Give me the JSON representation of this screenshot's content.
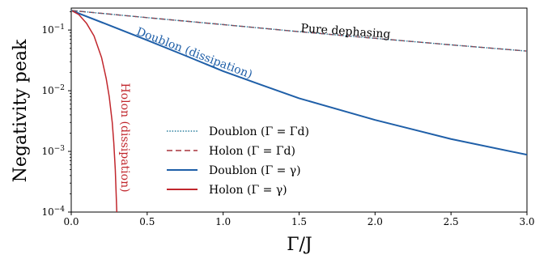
{
  "chart_data": {
    "type": "line",
    "xlabel": "Γ/J",
    "ylabel": "Negativity peak",
    "xlim": [
      0.0,
      3.0
    ],
    "ylim": [
      0.0001,
      0.23
    ],
    "yscale": "log",
    "x_ticks": [
      "0.0",
      "0.5",
      "1.0",
      "1.5",
      "2.0",
      "2.5",
      "3.0"
    ],
    "y_ticks": [
      {
        "base": "10",
        "exp": "−1"
      },
      {
        "base": "10",
        "exp": "−2"
      },
      {
        "base": "10",
        "exp": "−3"
      },
      {
        "base": "10",
        "exp": "−4"
      }
    ],
    "legend_position": "lower-center",
    "series": [
      {
        "name": "Doublon (Γ = Γd)",
        "color": "#2a7f9e",
        "style": "dotted",
        "x": [
          0.0,
          0.5,
          1.0,
          1.5,
          2.0,
          2.5,
          3.0
        ],
        "y": [
          0.21,
          0.16,
          0.123,
          0.094,
          0.073,
          0.057,
          0.045
        ]
      },
      {
        "name": "Holon (Γ = Γd)",
        "color": "#a8343c",
        "style": "dashed",
        "x": [
          0.0,
          0.5,
          1.0,
          1.5,
          2.0,
          2.5,
          3.0
        ],
        "y": [
          0.21,
          0.16,
          0.123,
          0.094,
          0.073,
          0.057,
          0.045
        ]
      },
      {
        "name": "Doublon (Γ = γ)",
        "color": "#1f5fa8",
        "style": "solid",
        "x": [
          0.0,
          0.25,
          0.5,
          0.75,
          1.0,
          1.25,
          1.5,
          2.0,
          2.5,
          3.0
        ],
        "y": [
          0.21,
          0.12,
          0.068,
          0.038,
          0.021,
          0.0125,
          0.0075,
          0.0033,
          0.0016,
          0.00088
        ]
      },
      {
        "name": "Holon (Γ = γ)",
        "color": "#c1272d",
        "style": "solid",
        "x": [
          0.0,
          0.05,
          0.1,
          0.15,
          0.2,
          0.23,
          0.25,
          0.27,
          0.28,
          0.29,
          0.3
        ],
        "y": [
          0.21,
          0.18,
          0.13,
          0.08,
          0.035,
          0.016,
          0.008,
          0.003,
          0.0014,
          0.0005,
          0.0001
        ]
      }
    ],
    "annotations": [
      {
        "text": "Pure dephasing",
        "color": "#000000"
      },
      {
        "text": "Doublon (dissipation)",
        "color": "#1f5fa8"
      },
      {
        "text": "Holon (dissipation)",
        "color": "#c1272d"
      }
    ],
    "grid": false
  }
}
